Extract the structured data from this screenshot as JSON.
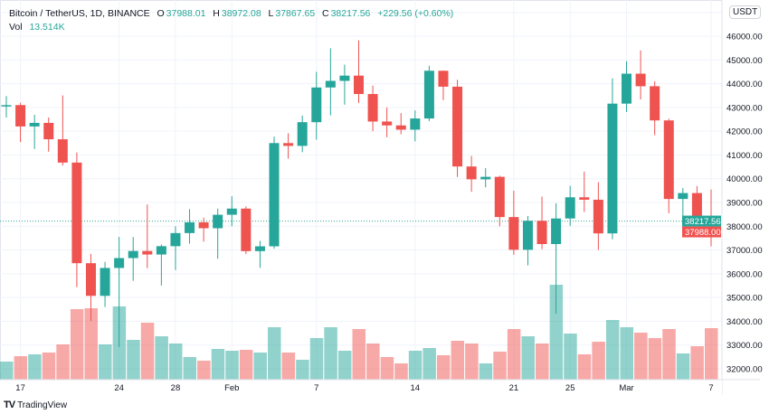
{
  "legend": {
    "symbol": "Bitcoin / TetherUS, 1D, BINANCE",
    "o_label": "O",
    "o": "37988.01",
    "h_label": "H",
    "h": "38972.08",
    "l_label": "L",
    "l": "37867.65",
    "c_label": "C",
    "c": "38217.56",
    "change": "+229.56 (+0.60%)",
    "vol_label": "Vol",
    "vol": "13.514K"
  },
  "currency_badge": "USDT",
  "branding": "TradingView",
  "colors": {
    "up": "#26a69a",
    "down": "#ef5350",
    "grid": "#f0f3fa"
  },
  "chart_data": {
    "type": "candlestick",
    "price_axis": {
      "min": 32000,
      "max": 46000,
      "step": 1000,
      "tick_labels": [
        "46000.00",
        "45000.00",
        "44000.00",
        "43000.00",
        "42000.00",
        "41000.00",
        "40000.00",
        "39000.00",
        "38000.00",
        "37000.00",
        "36000.00",
        "35000.00",
        "34000.00",
        "33000.00",
        "32000.00"
      ]
    },
    "time_axis": {
      "ticks": [
        {
          "label": "17",
          "index": 1
        },
        {
          "label": "24",
          "index": 8
        },
        {
          "label": "28",
          "index": 12
        },
        {
          "label": "Feb",
          "index": 16
        },
        {
          "label": "7",
          "index": 22
        },
        {
          "label": "14",
          "index": 29
        },
        {
          "label": "21",
          "index": 36
        },
        {
          "label": "25",
          "index": 40
        },
        {
          "label": "Mar",
          "index": 44
        },
        {
          "label": "7",
          "index": 50
        }
      ]
    },
    "current_price": {
      "label": "38217.56",
      "value": 38217.56
    },
    "last_close": {
      "label": "37988.00",
      "value": 37988.0
    },
    "ohlc": [
      [
        43071,
        43476,
        42578,
        43098
      ],
      [
        43099,
        43198,
        41540,
        42200
      ],
      [
        42200,
        42691,
        41250,
        42350
      ],
      [
        42350,
        42574,
        41138,
        41660
      ],
      [
        41660,
        43505,
        40553,
        40680
      ],
      [
        40680,
        41100,
        35440,
        36445
      ],
      [
        36445,
        36835,
        34008,
        35071
      ],
      [
        35071,
        36499,
        34601,
        36244
      ],
      [
        36244,
        37550,
        32917,
        36660
      ],
      [
        36660,
        37545,
        35701,
        36958
      ],
      [
        36958,
        38919,
        36234,
        36810
      ],
      [
        36810,
        37234,
        35507,
        37161
      ],
      [
        37161,
        38000,
        36155,
        37712
      ],
      [
        37712,
        38720,
        37268,
        38166
      ],
      [
        38166,
        38359,
        37351,
        37917
      ],
      [
        37917,
        38744,
        36632,
        38483
      ],
      [
        38483,
        39265,
        38000,
        38743
      ],
      [
        38743,
        38834,
        36832,
        36952
      ],
      [
        36952,
        37387,
        36250,
        37155
      ],
      [
        37155,
        41772,
        37055,
        41500
      ],
      [
        41500,
        41913,
        40843,
        41382
      ],
      [
        41382,
        42657,
        41116,
        42380
      ],
      [
        42380,
        44500,
        41645,
        43840
      ],
      [
        43840,
        45492,
        42666,
        44118
      ],
      [
        44118,
        44799,
        43117,
        44339
      ],
      [
        44339,
        45821,
        43188,
        43565
      ],
      [
        43565,
        43920,
        42000,
        42407
      ],
      [
        42407,
        43000,
        41748,
        42244
      ],
      [
        42244,
        42760,
        41870,
        42064
      ],
      [
        42064,
        42876,
        41571,
        42535
      ],
      [
        42535,
        44751,
        42427,
        44544
      ],
      [
        44544,
        44549,
        43307,
        43873
      ],
      [
        43873,
        44164,
        40073,
        40515
      ],
      [
        40515,
        40959,
        39450,
        39974
      ],
      [
        39974,
        40444,
        39639,
        40079
      ],
      [
        40079,
        40125,
        38000,
        38386
      ],
      [
        38386,
        39494,
        36800,
        37008
      ],
      [
        37008,
        38429,
        36350,
        38230
      ],
      [
        38230,
        39249,
        37036,
        37250
      ],
      [
        37250,
        38968,
        34322,
        38327
      ],
      [
        38327,
        39700,
        38014,
        39219
      ],
      [
        39219,
        40300,
        38600,
        39116
      ],
      [
        39116,
        39855,
        37000,
        37699
      ],
      [
        37699,
        44225,
        37450,
        43160
      ],
      [
        43160,
        44949,
        42809,
        44421
      ],
      [
        44421,
        45400,
        43334,
        43892
      ],
      [
        43892,
        44101,
        41832,
        42454
      ],
      [
        42454,
        42527,
        38550,
        39148
      ],
      [
        39148,
        39613,
        38407,
        39397
      ],
      [
        39397,
        39693,
        38088,
        38420
      ],
      [
        38420,
        39547,
        37155,
        37988
      ]
    ],
    "volume_relative": [
      25,
      31,
      33,
      35,
      44,
      83,
      84,
      44,
      86,
      49,
      68,
      53,
      45,
      30,
      26,
      39,
      37,
      38,
      35,
      63,
      35,
      27,
      51,
      63,
      37,
      61,
      45,
      30,
      23,
      37,
      40,
      32,
      48,
      45,
      23,
      36,
      61,
      53,
      45,
      110,
      56,
      33,
      47,
      71,
      63,
      57,
      51,
      61,
      34,
      42,
      62
    ]
  }
}
